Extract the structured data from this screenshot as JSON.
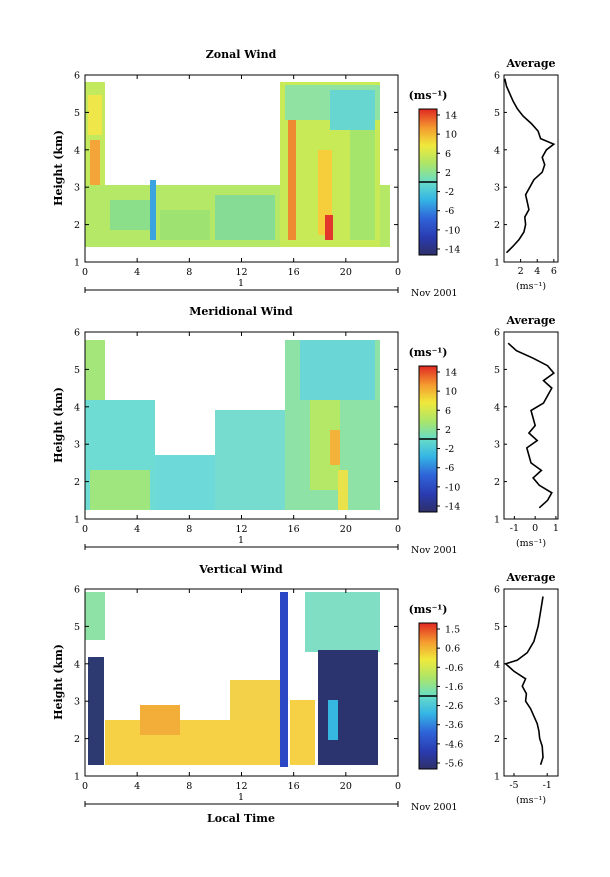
{
  "chart_data": [
    {
      "type": "heatmap",
      "title": "Zonal Wind",
      "ylabel": "Height (km)",
      "xticks": [
        "0",
        "4",
        "8",
        "12",
        "16",
        "20",
        "0"
      ],
      "date_label": "1",
      "date_suffix": "Nov 2001",
      "ylim": [
        1,
        6
      ],
      "yticks": [
        "1",
        "2",
        "3",
        "4",
        "5",
        "6"
      ],
      "colorbar": {
        "unit": "(ms⁻¹)",
        "ticks": [
          "14",
          "10",
          "6",
          "2",
          "-2",
          "-6",
          "-10",
          "-14"
        ]
      },
      "profile": {
        "title": "Average",
        "xlabel": "(ms⁻¹)",
        "xticks": [
          "2",
          "4",
          "6"
        ],
        "xlim": [
          0,
          6.5
        ],
        "heights": [
          1.25,
          1.4,
          1.6,
          1.8,
          2.0,
          2.2,
          2.4,
          2.6,
          2.8,
          3.0,
          3.2,
          3.4,
          3.6,
          3.8,
          4.0,
          4.15,
          4.3,
          4.5,
          4.7,
          4.9,
          5.1,
          5.3,
          5.5,
          5.7,
          5.9
        ],
        "values": [
          0.3,
          1.0,
          1.8,
          2.4,
          2.6,
          2.5,
          3.0,
          2.8,
          2.6,
          3.1,
          3.6,
          4.6,
          4.9,
          4.6,
          5.1,
          6.0,
          4.4,
          4.1,
          3.3,
          2.3,
          1.6,
          1.1,
          0.7,
          0.3,
          0.1
        ]
      }
    },
    {
      "type": "heatmap",
      "title": "Meridional Wind",
      "ylabel": "Height (km)",
      "xticks": [
        "0",
        "4",
        "8",
        "12",
        "16",
        "20",
        "0"
      ],
      "date_label": "1",
      "date_suffix": "Nov 2001",
      "ylim": [
        1,
        6
      ],
      "yticks": [
        "1",
        "2",
        "3",
        "4",
        "5",
        "6"
      ],
      "colorbar": {
        "unit": "(ms⁻¹)",
        "ticks": [
          "14",
          "10",
          "6",
          "2",
          "-2",
          "-6",
          "-10",
          "-14"
        ]
      },
      "profile": {
        "title": "Average",
        "xlabel": "(ms⁻¹)",
        "xticks": [
          "-1",
          "0",
          "1"
        ],
        "xlim": [
          -1.5,
          1.1
        ],
        "heights": [
          1.3,
          1.5,
          1.7,
          1.9,
          2.1,
          2.3,
          2.5,
          2.7,
          2.9,
          3.1,
          3.3,
          3.5,
          3.7,
          3.9,
          4.1,
          4.3,
          4.5,
          4.7,
          4.9,
          5.1,
          5.3,
          5.5,
          5.7
        ],
        "values": [
          0.2,
          0.6,
          0.8,
          0.2,
          -0.1,
          0.3,
          -0.2,
          -0.3,
          -0.4,
          0.1,
          -0.3,
          0.0,
          -0.1,
          -0.2,
          0.4,
          0.6,
          0.8,
          0.4,
          0.9,
          0.6,
          -0.1,
          -0.9,
          -1.3
        ]
      }
    },
    {
      "type": "heatmap",
      "title": "Vertical Wind",
      "ylabel": "Height (km)",
      "xlabel": "Local Time",
      "xticks": [
        "0",
        "4",
        "8",
        "12",
        "16",
        "20",
        "0"
      ],
      "date_label": "1",
      "date_suffix": "Nov 2001",
      "ylim": [
        1,
        6
      ],
      "yticks": [
        "1",
        "2",
        "3",
        "4",
        "5",
        "6"
      ],
      "colorbar": {
        "unit": "(ms⁻¹)",
        "ticks": [
          "1.5",
          "0.6",
          "-0.6",
          "-1.6",
          "-2.6",
          "-3.6",
          "-4.6",
          "-5.6"
        ]
      },
      "profile": {
        "title": "Average",
        "xlabel": "(ms⁻¹)",
        "xticks": [
          "-5",
          "-1"
        ],
        "xlim": [
          -6.2,
          0.3
        ],
        "heights": [
          1.3,
          1.5,
          1.8,
          2.0,
          2.2,
          2.4,
          2.6,
          2.8,
          3.0,
          3.2,
          3.4,
          3.6,
          3.8,
          4.0,
          4.1,
          4.3,
          4.6,
          5.0,
          5.4,
          5.8
        ],
        "values": [
          -1.8,
          -1.5,
          -1.6,
          -1.9,
          -2.0,
          -2.2,
          -2.6,
          -3.0,
          -3.6,
          -3.5,
          -4.0,
          -3.6,
          -5.0,
          -6.0,
          -4.6,
          -3.4,
          -2.6,
          -2.1,
          -1.8,
          -1.5
        ]
      }
    }
  ]
}
